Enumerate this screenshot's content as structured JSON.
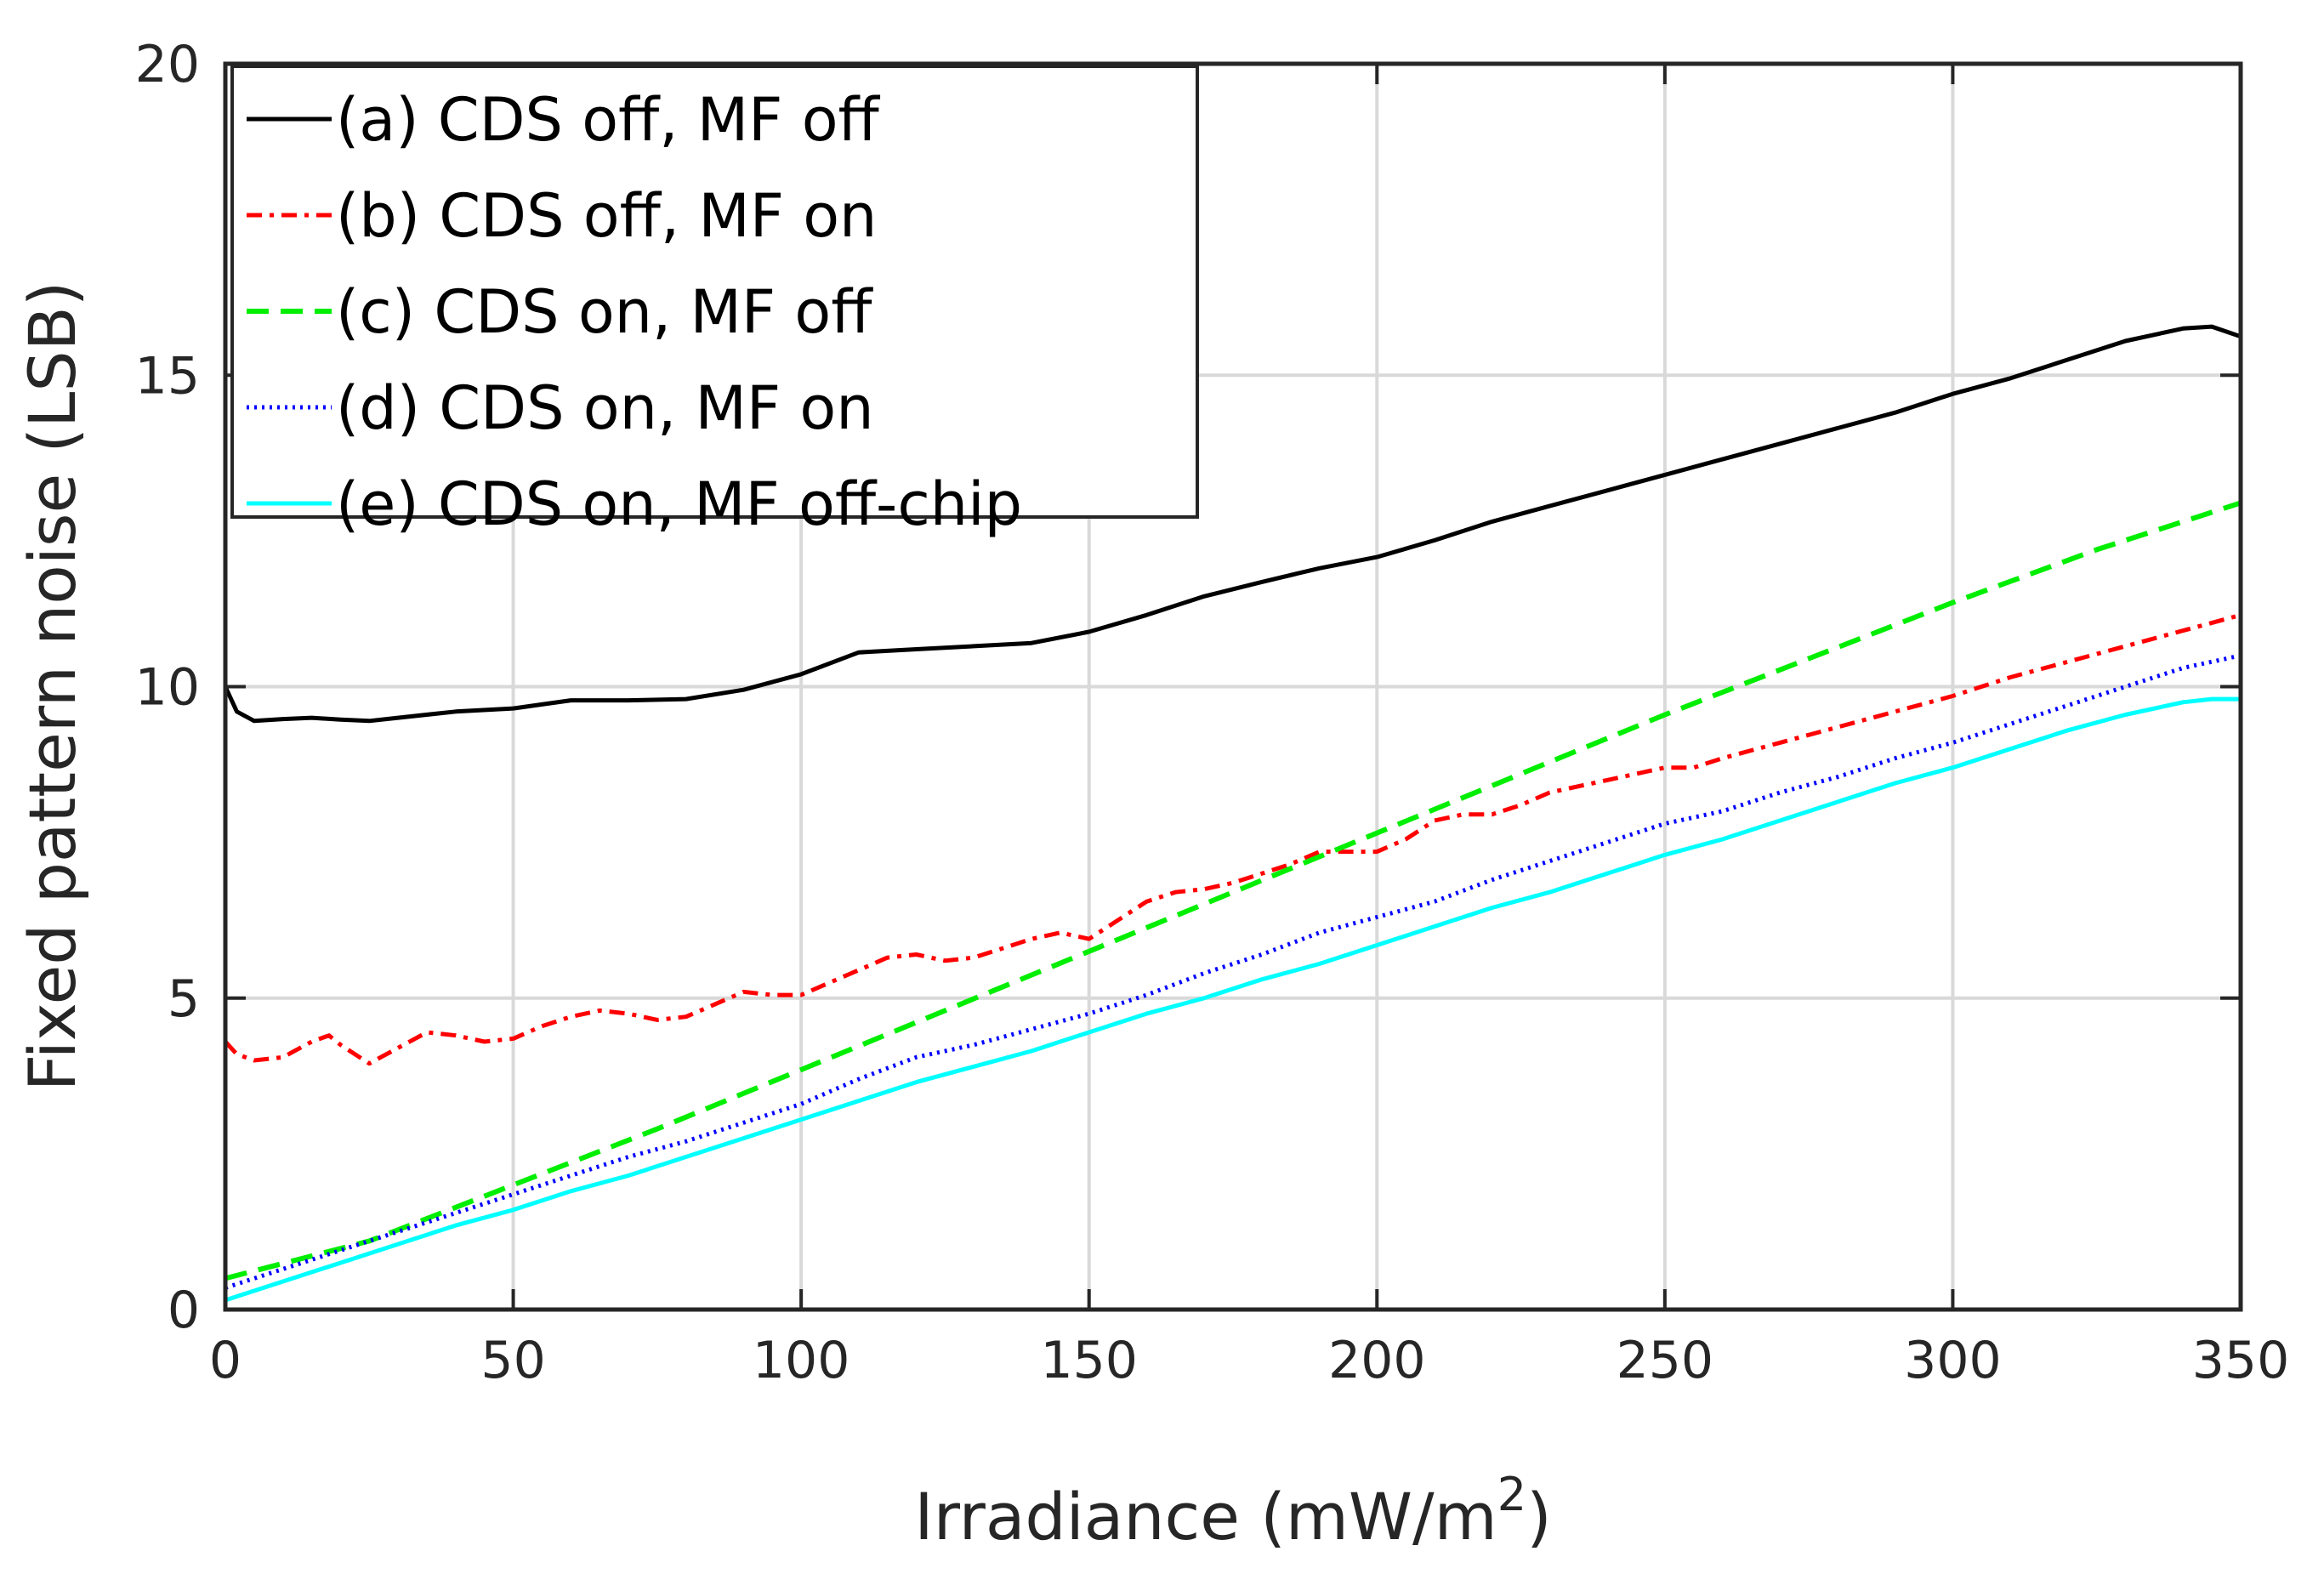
{
  "chart_data": {
    "type": "line",
    "title": "",
    "xlabel": "Irradiance (mW/m",
    "xlabel_superscript": "2",
    "xlabel_close": ")",
    "ylabel": "Fixed pattern noise (LSB)",
    "xlim": [
      0,
      350
    ],
    "ylim": [
      0,
      20
    ],
    "xticks": [
      0,
      50,
      100,
      150,
      200,
      250,
      300,
      350
    ],
    "yticks": [
      0,
      5,
      10,
      15,
      20
    ],
    "xtick_labels": [
      "0",
      "50",
      "100",
      "150",
      "200",
      "250",
      "300",
      "350"
    ],
    "ytick_labels": [
      "0",
      "5",
      "10",
      "15",
      "20"
    ],
    "grid": true,
    "legend_position": "top-left",
    "series": [
      {
        "name": "(a) CDS off, MF off",
        "color": "#000000",
        "dash": "solid",
        "x": [
          0,
          2,
          5,
          10,
          15,
          20,
          25,
          30,
          40,
          50,
          60,
          70,
          80,
          90,
          100,
          110,
          120,
          130,
          140,
          150,
          160,
          170,
          180,
          190,
          200,
          210,
          220,
          230,
          240,
          250,
          260,
          270,
          280,
          290,
          300,
          310,
          320,
          330,
          340,
          345,
          350
        ],
        "y": [
          10.0,
          9.6,
          9.45,
          9.48,
          9.5,
          9.47,
          9.45,
          9.5,
          9.6,
          9.65,
          9.78,
          9.78,
          9.8,
          9.95,
          10.2,
          10.55,
          10.6,
          10.65,
          10.7,
          10.88,
          11.15,
          11.45,
          11.68,
          11.9,
          12.08,
          12.35,
          12.65,
          12.9,
          13.15,
          13.4,
          13.65,
          13.9,
          14.15,
          14.4,
          14.7,
          14.95,
          15.25,
          15.55,
          15.75,
          15.78,
          15.62
        ]
      },
      {
        "name": "(b) CDS off, MF on",
        "color": "#ff0000",
        "dash": "dashdot",
        "x": [
          0,
          2,
          5,
          10,
          15,
          18,
          20,
          25,
          30,
          35,
          40,
          45,
          50,
          55,
          60,
          65,
          70,
          75,
          80,
          85,
          90,
          95,
          100,
          105,
          110,
          115,
          120,
          125,
          130,
          135,
          140,
          145,
          150,
          155,
          160,
          165,
          170,
          175,
          180,
          185,
          190,
          195,
          200,
          205,
          210,
          215,
          220,
          225,
          230,
          240,
          250,
          255,
          260,
          270,
          280,
          290,
          300,
          310,
          320,
          330,
          340,
          350
        ],
        "y": [
          4.3,
          4.1,
          4.0,
          4.05,
          4.3,
          4.4,
          4.25,
          3.95,
          4.2,
          4.45,
          4.4,
          4.3,
          4.35,
          4.55,
          4.7,
          4.8,
          4.75,
          4.65,
          4.7,
          4.9,
          5.1,
          5.05,
          5.05,
          5.25,
          5.45,
          5.65,
          5.7,
          5.6,
          5.65,
          5.8,
          5.95,
          6.05,
          5.95,
          6.25,
          6.55,
          6.7,
          6.75,
          6.85,
          7.0,
          7.15,
          7.35,
          7.35,
          7.35,
          7.55,
          7.85,
          7.95,
          7.95,
          8.1,
          8.3,
          8.5,
          8.7,
          8.7,
          8.85,
          9.1,
          9.35,
          9.6,
          9.85,
          10.15,
          10.4,
          10.65,
          10.9,
          11.15
        ]
      },
      {
        "name": "(c) CDS on, MF off",
        "color": "#00ee00",
        "dash": "dashed",
        "x": [
          0,
          25,
          50,
          75,
          100,
          125,
          150,
          175,
          200,
          225,
          250,
          275,
          300,
          325,
          350
        ],
        "y": [
          0.5,
          1.1,
          2.0,
          2.9,
          3.85,
          4.8,
          5.75,
          6.7,
          7.65,
          8.6,
          9.55,
          10.45,
          11.35,
          12.2,
          12.95
        ]
      },
      {
        "name": "(d) CDS on, MF on",
        "color": "#0000ff",
        "dash": "dotted",
        "x": [
          0,
          10,
          20,
          30,
          40,
          50,
          60,
          70,
          80,
          90,
          100,
          110,
          120,
          130,
          140,
          150,
          160,
          170,
          180,
          190,
          200,
          210,
          220,
          230,
          240,
          250,
          260,
          270,
          280,
          290,
          300,
          310,
          320,
          330,
          340,
          350
        ],
        "y": [
          0.35,
          0.65,
          0.95,
          1.25,
          1.55,
          1.85,
          2.15,
          2.45,
          2.7,
          3.0,
          3.3,
          3.7,
          4.05,
          4.25,
          4.5,
          4.75,
          5.05,
          5.4,
          5.7,
          6.05,
          6.3,
          6.55,
          6.9,
          7.2,
          7.5,
          7.8,
          8.0,
          8.3,
          8.55,
          8.85,
          9.1,
          9.4,
          9.7,
          10.0,
          10.3,
          10.5
        ]
      },
      {
        "name": "(e) CDS on, MF off-chip",
        "color": "#00ffff",
        "dash": "solid",
        "x": [
          0,
          10,
          20,
          30,
          40,
          50,
          60,
          70,
          80,
          90,
          100,
          110,
          120,
          130,
          140,
          150,
          160,
          170,
          180,
          190,
          200,
          210,
          220,
          230,
          240,
          250,
          260,
          270,
          280,
          290,
          300,
          310,
          320,
          330,
          340,
          345,
          350
        ],
        "y": [
          0.15,
          0.45,
          0.75,
          1.05,
          1.35,
          1.6,
          1.9,
          2.15,
          2.45,
          2.75,
          3.05,
          3.35,
          3.65,
          3.9,
          4.15,
          4.45,
          4.75,
          5.0,
          5.3,
          5.55,
          5.85,
          6.15,
          6.45,
          6.7,
          7.0,
          7.3,
          7.55,
          7.85,
          8.15,
          8.45,
          8.7,
          9.0,
          9.3,
          9.55,
          9.75,
          9.8,
          9.8
        ]
      }
    ]
  }
}
